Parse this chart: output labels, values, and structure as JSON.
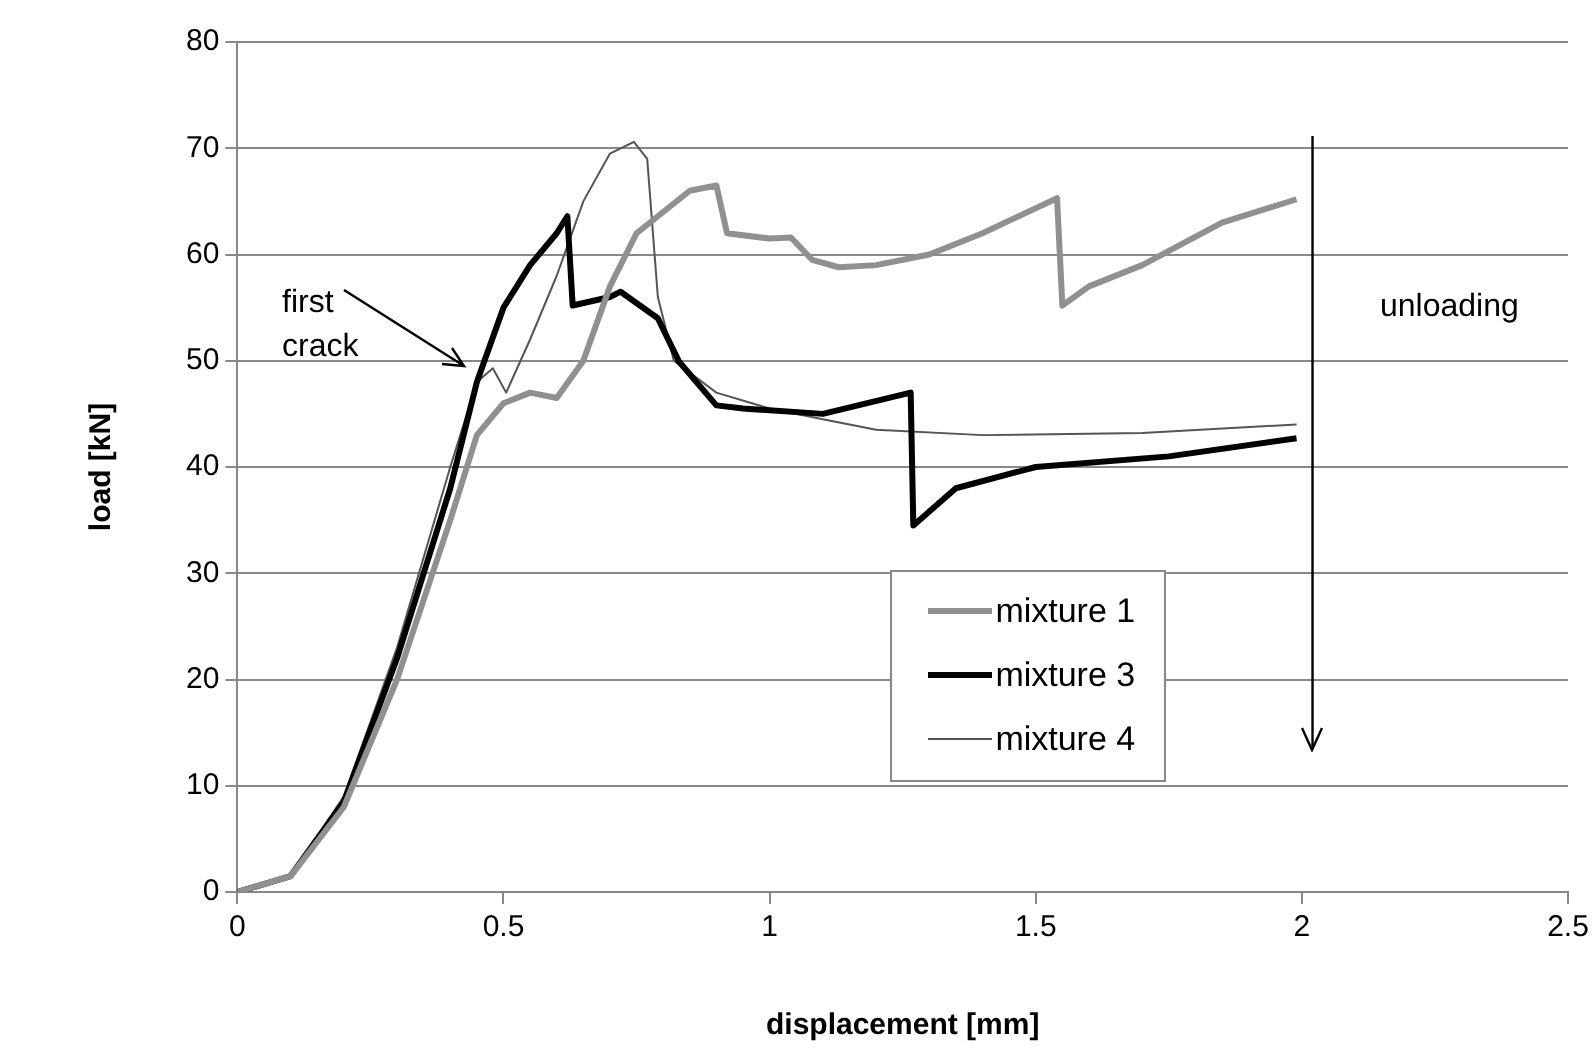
{
  "chart_data": {
    "type": "line",
    "xlabel": "displacement [mm]",
    "ylabel": "load [kN]",
    "xlim": [
      0,
      2.5
    ],
    "xticks": [
      0,
      0.5,
      1,
      1.5,
      2,
      2.5
    ],
    "ylim": [
      0,
      80
    ],
    "yticks": [
      0,
      10,
      20,
      30,
      40,
      50,
      60,
      70,
      80
    ],
    "grid": "y",
    "legend": "bottom right",
    "marker": "none",
    "line_style": "solid",
    "annotations": [
      "first crack"
    ],
    "ref_lines": [
      {
        "axis": "x",
        "value": 2.02,
        "label": "unloading",
        "color": "#000000",
        "line_style": "solid"
      }
    ],
    "series": [
      {
        "name": "mixture 1",
        "color": "#909090",
        "x": [
          0,
          0.1,
          0.2,
          0.3,
          0.4,
          0.45,
          0.5,
          0.55,
          0.6,
          0.65,
          0.7,
          0.75,
          0.8,
          0.85,
          0.9,
          0.92,
          1.0,
          1.04,
          1.08,
          1.13,
          1.2,
          1.3,
          1.4,
          1.54,
          1.55,
          1.6,
          1.7,
          1.85,
          1.99
        ],
        "values": [
          0,
          1.5,
          8,
          20,
          35,
          43,
          46,
          47,
          46.5,
          50,
          57,
          62,
          64,
          66,
          66.5,
          62,
          61.5,
          61.6,
          59.5,
          58.8,
          59,
          60,
          62,
          65.3,
          55.2,
          57,
          59,
          63,
          65.2
        ]
      },
      {
        "name": "mixture 3",
        "color": "#000000",
        "x": [
          0,
          0.1,
          0.2,
          0.3,
          0.4,
          0.45,
          0.5,
          0.55,
          0.6,
          0.62,
          0.63,
          0.7,
          0.72,
          0.79,
          0.83,
          0.9,
          0.95,
          1.1,
          1.265,
          1.27,
          1.35,
          1.5,
          1.75,
          1.99
        ],
        "values": [
          0,
          1.5,
          8.5,
          22,
          38,
          48,
          55,
          59,
          62,
          63.6,
          55.2,
          56,
          56.5,
          54,
          49.9,
          45.8,
          45.5,
          45,
          47,
          34.5,
          38,
          40,
          41,
          42.7
        ]
      },
      {
        "name": "mixture 4",
        "color": "#555555",
        "x": [
          0,
          0.1,
          0.2,
          0.3,
          0.4,
          0.45,
          0.48,
          0.505,
          0.55,
          0.6,
          0.65,
          0.7,
          0.745,
          0.77,
          0.79,
          0.82,
          0.9,
          1.0,
          1.1,
          1.2,
          1.4,
          1.7,
          1.99
        ],
        "values": [
          0,
          1.5,
          9,
          23,
          40,
          48,
          49.3,
          47,
          52,
          58,
          65,
          69.5,
          70.6,
          69,
          56,
          50,
          47,
          45.5,
          44.5,
          43.5,
          43,
          43.2,
          44
        ]
      }
    ]
  }
}
